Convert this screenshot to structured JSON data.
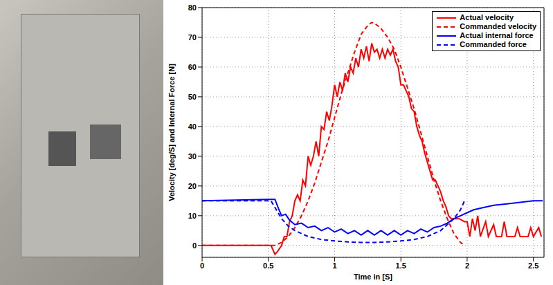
{
  "chart_data": {
    "type": "line",
    "xlabel": "Time in [S]",
    "ylabel": "Velocity [deg/S] and Internal Force [N]",
    "xlim": [
      0,
      2.58
    ],
    "xticks": [
      0,
      0.5,
      1,
      1.5,
      2,
      2.5
    ],
    "ylim": [
      -4,
      80
    ],
    "yticks": [
      0,
      10,
      20,
      30,
      40,
      50,
      60,
      70,
      80
    ],
    "grid": true,
    "legend": "top-right",
    "series": [
      {
        "name": "Actual velocity",
        "color": "#ff0000",
        "line_style": "solid",
        "x": [
          0,
          0.52,
          0.55,
          0.57,
          0.6,
          0.62,
          0.64,
          0.66,
          0.68,
          0.7,
          0.72,
          0.74,
          0.76,
          0.78,
          0.8,
          0.82,
          0.84,
          0.86,
          0.88,
          0.9,
          0.92,
          0.94,
          0.96,
          0.98,
          1.0,
          1.02,
          1.04,
          1.06,
          1.08,
          1.1,
          1.12,
          1.14,
          1.16,
          1.18,
          1.2,
          1.22,
          1.24,
          1.26,
          1.28,
          1.3,
          1.32,
          1.34,
          1.36,
          1.38,
          1.4,
          1.42,
          1.44,
          1.46,
          1.48,
          1.5,
          1.52,
          1.54,
          1.56,
          1.58,
          1.6,
          1.62,
          1.64,
          1.66,
          1.68,
          1.7,
          1.72,
          1.74,
          1.76,
          1.78,
          1.8,
          1.82,
          1.84,
          1.86,
          1.88,
          1.9,
          1.94,
          1.98,
          2.0,
          2.02,
          2.04,
          2.06,
          2.08,
          2.1,
          2.14,
          2.16,
          2.2,
          2.22,
          2.26,
          2.28,
          2.3,
          2.36,
          2.38,
          2.4,
          2.46,
          2.48,
          2.5,
          2.54,
          2.56
        ],
        "values": [
          0,
          0,
          -3,
          -2,
          0,
          3,
          3,
          8,
          10,
          15,
          17,
          15,
          22,
          20,
          30,
          27,
          30,
          35,
          30,
          40,
          39,
          45,
          42,
          47,
          54,
          50,
          55,
          52,
          58,
          55,
          60,
          58,
          63,
          60,
          66,
          63,
          67,
          62,
          68,
          65,
          66,
          63,
          66,
          63,
          66,
          64,
          66,
          62,
          60,
          54,
          54,
          52,
          50,
          46,
          45,
          40,
          37,
          35,
          31,
          28,
          25,
          22,
          22,
          20,
          18,
          15,
          13,
          10,
          9,
          9,
          9,
          8,
          8,
          3,
          9,
          5,
          10,
          3,
          8,
          3,
          7,
          3,
          3,
          8,
          3,
          3,
          6,
          3,
          3,
          6,
          3,
          6,
          3
        ]
      },
      {
        "name": "Commanded velocity",
        "color": "#ff0000",
        "line_style": "dashed",
        "x": [
          0,
          0.55,
          0.6,
          0.65,
          0.7,
          0.75,
          0.8,
          0.85,
          0.9,
          0.95,
          1.0,
          1.05,
          1.1,
          1.15,
          1.2,
          1.25,
          1.28,
          1.3,
          1.35,
          1.4,
          1.45,
          1.5,
          1.55,
          1.6,
          1.65,
          1.7,
          1.75,
          1.8,
          1.85,
          1.9,
          1.95,
          1.98
        ],
        "values": [
          0,
          0,
          1,
          3,
          6,
          10,
          15,
          21,
          28,
          35,
          43,
          51,
          58,
          65,
          71,
          74,
          75,
          74.8,
          73,
          70,
          66,
          60,
          53,
          46,
          38,
          30,
          22,
          15,
          9,
          4,
          1,
          0
        ]
      },
      {
        "name": "Actual internal force",
        "color": "#0000ff",
        "line_style": "solid",
        "x": [
          0,
          0.5,
          0.55,
          0.58,
          0.6,
          0.63,
          0.66,
          0.7,
          0.75,
          0.8,
          0.85,
          0.9,
          0.95,
          1.0,
          1.05,
          1.1,
          1.15,
          1.2,
          1.25,
          1.3,
          1.35,
          1.4,
          1.45,
          1.5,
          1.55,
          1.6,
          1.65,
          1.7,
          1.75,
          1.8,
          1.85,
          1.9,
          1.95,
          2.0,
          2.05,
          2.1,
          2.2,
          2.3,
          2.4,
          2.5,
          2.57
        ],
        "values": [
          15,
          15.5,
          15.5,
          12,
          10,
          10.5,
          8.5,
          7,
          7.5,
          6,
          6.5,
          5,
          6,
          4.5,
          5.5,
          4,
          5,
          3.5,
          5,
          3.5,
          5,
          3.5,
          5,
          3.5,
          5,
          4,
          5.5,
          4.5,
          6,
          6.5,
          7.5,
          9,
          10,
          11,
          12,
          12.5,
          13.5,
          14,
          14.5,
          15,
          15
        ]
      },
      {
        "name": "Commanded force",
        "color": "#0000ff",
        "line_style": "dashed",
        "x": [
          0,
          0.52,
          0.56,
          0.6,
          0.65,
          0.7,
          0.75,
          0.8,
          0.9,
          1.0,
          1.1,
          1.2,
          1.3,
          1.4,
          1.5,
          1.6,
          1.7,
          1.75,
          1.8,
          1.85,
          1.9,
          1.95,
          1.98
        ],
        "values": [
          15,
          15,
          12,
          9,
          6.5,
          5,
          4,
          3,
          2,
          1.5,
          1.2,
          1,
          1,
          1.2,
          1.5,
          2,
          3,
          4,
          5,
          7,
          9,
          12,
          15
        ]
      }
    ]
  }
}
